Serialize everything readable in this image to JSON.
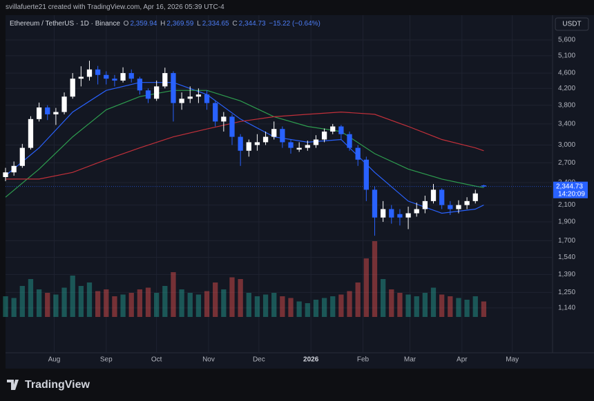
{
  "header": {
    "credit": "svillafuerte21 created with TradingView.com, Apr 16, 2026 05:39 UTC-4",
    "symbol": "Ethereum / TetherUS · 1D · Binance",
    "o_label": "O",
    "o": "2,359.94",
    "h_label": "H",
    "h": "2,369.59",
    "l_label": "L",
    "l": "2,334.65",
    "c_label": "C",
    "c": "2,344.73",
    "change": "−15.22 (−0.64%)",
    "currency": "USDT",
    "countdown": "14:20:09",
    "logo": "TradingView"
  },
  "chart_data": {
    "type": "candlestick",
    "log_scale": true,
    "grid": true,
    "up_color": "#ffffff",
    "down_color": "#2962ff",
    "volume_up_color": "#26a69a",
    "volume_down_color": "#ef5350",
    "xlim": [
      -0.66,
      65.2
    ],
    "xticks": [
      {
        "value": 5.8,
        "label": "Aug"
      },
      {
        "value": 12,
        "label": "Sep"
      },
      {
        "value": 18,
        "label": "Oct"
      },
      {
        "value": 24.2,
        "label": "Nov"
      },
      {
        "value": 30.2,
        "label": "Dec"
      },
      {
        "value": 36.4,
        "label": "2026"
      },
      {
        "value": 42.6,
        "label": "Feb"
      },
      {
        "value": 48.2,
        "label": "Mar"
      },
      {
        "value": 54.4,
        "label": "Apr"
      },
      {
        "value": 60.4,
        "label": "May"
      }
    ],
    "ylim": [
      873,
      6490
    ],
    "yticks": [
      {
        "value": 1140,
        "label": "1,140"
      },
      {
        "value": 1250,
        "label": "1,250"
      },
      {
        "value": 1390,
        "label": "1,390"
      },
      {
        "value": 1540,
        "label": "1,540"
      },
      {
        "value": 1700,
        "label": "1,700"
      },
      {
        "value": 1900,
        "label": "1,900"
      },
      {
        "value": 2100,
        "label": "2,100"
      },
      {
        "value": 2400,
        "label": "2,400"
      },
      {
        "value": 2700,
        "label": "2,700"
      },
      {
        "value": 3000,
        "label": "3,000"
      },
      {
        "value": 3400,
        "label": "3,400"
      },
      {
        "value": 3800,
        "label": "3,800"
      },
      {
        "value": 4200,
        "label": "4,200"
      },
      {
        "value": 4600,
        "label": "4,600"
      },
      {
        "value": 5100,
        "label": "5,100"
      },
      {
        "value": 5600,
        "label": "5,600"
      }
    ],
    "last_price": {
      "value": 2344.73,
      "label": "2,344.73"
    },
    "open": [
      2480,
      2550,
      2650,
      2950,
      3500,
      3750,
      3600,
      3650,
      4000,
      4450,
      4500,
      4700,
      4550,
      4450,
      4400,
      4600,
      4450,
      4150,
      3950,
      4250,
      4600,
      3850,
      3950,
      4000,
      4050,
      3850,
      3450,
      3550,
      3150,
      2900,
      3000,
      3050,
      3150,
      3300,
      3050,
      2920,
      2950,
      3000,
      3100,
      3250,
      3350,
      3200,
      2950,
      2750,
      2300,
      1950,
      2050,
      1990,
      1950,
      2000,
      2050,
      2150,
      2300,
      2100,
      2050,
      2100,
      2150,
      2359.94
    ],
    "high": [
      2620,
      2720,
      3020,
      3560,
      3860,
      3800,
      3740,
      4100,
      4600,
      4790,
      4950,
      4800,
      4650,
      4550,
      4760,
      4700,
      4500,
      4200,
      4400,
      4750,
      4650,
      4100,
      4250,
      4200,
      4150,
      3900,
      3650,
      3600,
      3200,
      3100,
      3200,
      3250,
      3450,
      3350,
      3100,
      3050,
      3080,
      3180,
      3310,
      3400,
      3380,
      3250,
      3000,
      2800,
      2350,
      2150,
      2100,
      2050,
      2080,
      2130,
      2220,
      2380,
      2320,
      2150,
      2160,
      2200,
      2300,
      2369.59
    ],
    "low": [
      2420,
      2500,
      2620,
      2920,
      3450,
      3480,
      3380,
      3600,
      3950,
      4250,
      4400,
      4300,
      4300,
      4250,
      4350,
      4350,
      4050,
      3850,
      3900,
      4200,
      3450,
      3700,
      3850,
      3850,
      3700,
      3350,
      3250,
      3000,
      2650,
      2800,
      2900,
      3000,
      3100,
      2950,
      2850,
      2880,
      2900,
      2950,
      3050,
      3200,
      3100,
      2900,
      2650,
      2150,
      1750,
      1900,
      1880,
      1860,
      1820,
      1960,
      2000,
      2120,
      2050,
      1980,
      2000,
      2050,
      2120,
      2334.65
    ],
    "close": [
      2550,
      2650,
      2950,
      3500,
      3750,
      3600,
      3650,
      4000,
      4450,
      4500,
      4700,
      4550,
      4450,
      4400,
      4600,
      4450,
      4150,
      3950,
      4250,
      4600,
      3850,
      3950,
      4000,
      4050,
      3850,
      3450,
      3550,
      3150,
      2900,
      3050,
      3050,
      3150,
      3300,
      3050,
      2950,
      2950,
      3000,
      3100,
      3250,
      3350,
      3200,
      2950,
      2750,
      2300,
      1950,
      2050,
      1950,
      1950,
      2000,
      2050,
      2150,
      2300,
      2100,
      2050,
      2100,
      2150,
      2250,
      2344.73
    ],
    "volume": [
      600000,
      550000,
      900000,
      1100000,
      800000,
      700000,
      650000,
      850000,
      1200000,
      900000,
      1000000,
      750000,
      800000,
      600000,
      650000,
      700000,
      800000,
      850000,
      700000,
      900000,
      1300000,
      800000,
      700000,
      650000,
      750000,
      1000000,
      800000,
      1150000,
      1100000,
      700000,
      600000,
      650000,
      700000,
      600000,
      550000,
      450000,
      400000,
      500000,
      550000,
      600000,
      650000,
      750000,
      1000000,
      1700000,
      2200000,
      1100000,
      800000,
      700000,
      650000,
      600000,
      700000,
      850000,
      650000,
      600000,
      550000,
      500000,
      600000,
      450000
    ],
    "moving_averages": [
      {
        "color": "#2962ff",
        "x": [
          0,
          4,
          8,
          12,
          16,
          20,
          24,
          28,
          32,
          36,
          40,
          44,
          48,
          52,
          56,
          57
        ],
        "values": [
          2500,
          2950,
          3650,
          4150,
          4350,
          4350,
          4050,
          3500,
          3150,
          3050,
          3100,
          2550,
          2150,
          2000,
          2050,
          2100
        ]
      },
      {
        "color": "#2e9e4f",
        "x": [
          0,
          4,
          8,
          12,
          16,
          20,
          24,
          28,
          32,
          36,
          40,
          44,
          48,
          52,
          56,
          57
        ],
        "values": [
          2200,
          2600,
          3150,
          3700,
          4000,
          4150,
          4150,
          3900,
          3550,
          3350,
          3250,
          2850,
          2600,
          2450,
          2350,
          2330
        ]
      },
      {
        "color": "#c2303a",
        "x": [
          0,
          4,
          8,
          12,
          16,
          20,
          24,
          28,
          32,
          36,
          40,
          44,
          48,
          52,
          56,
          57
        ],
        "values": [
          2450,
          2450,
          2550,
          2750,
          2950,
          3150,
          3300,
          3450,
          3550,
          3600,
          3650,
          3600,
          3350,
          3100,
          2950,
          2900
        ]
      }
    ]
  }
}
